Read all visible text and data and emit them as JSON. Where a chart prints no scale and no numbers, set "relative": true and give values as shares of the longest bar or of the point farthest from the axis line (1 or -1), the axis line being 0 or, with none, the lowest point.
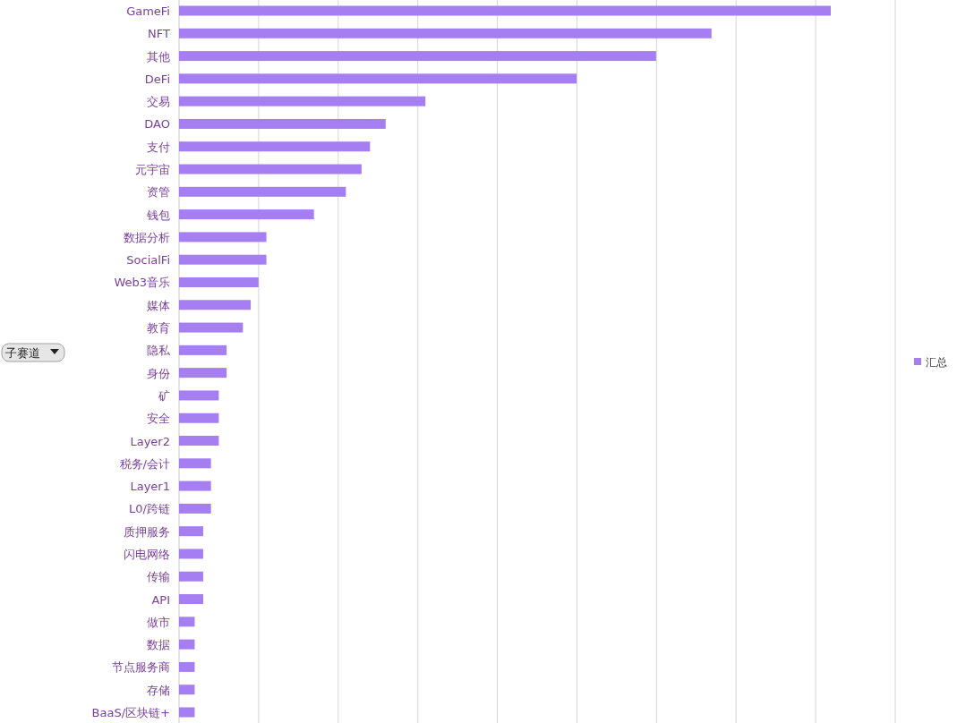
{
  "chart_data": {
    "type": "bar",
    "orientation": "horizontal",
    "relative": true,
    "grid": "x",
    "legend": "right",
    "ylabel": "子赛道",
    "categories": [
      "GameFi",
      "NFT",
      "其他",
      "DeFi",
      "交易",
      "DAO",
      "支付",
      "元宇宙",
      "资管",
      "钱包",
      "数据分析",
      "SocialFi",
      "Web3音乐",
      "媒体",
      "教育",
      "隐私",
      "身份",
      "矿",
      "安全",
      "Layer2",
      "税务/会计",
      "Layer1",
      "L0/跨链",
      "质押服务",
      "闪电网络",
      "传输",
      "API",
      "做市",
      "数据",
      "节点服务商",
      "存储",
      "BaaS/区块链+"
    ],
    "series": [
      {
        "name": "汇总",
        "color": "#a57ef2",
        "values": [
          1,
          0.817,
          0.732,
          0.61,
          0.378,
          0.317,
          0.293,
          0.28,
          0.256,
          0.207,
          0.134,
          0.134,
          0.122,
          0.11,
          0.098,
          0.073,
          0.073,
          0.061,
          0.061,
          0.061,
          0.049,
          0.049,
          0.049,
          0.037,
          0.037,
          0.037,
          0.037,
          0.024,
          0.024,
          0.024,
          0.024,
          0.024
        ]
      }
    ]
  }
}
